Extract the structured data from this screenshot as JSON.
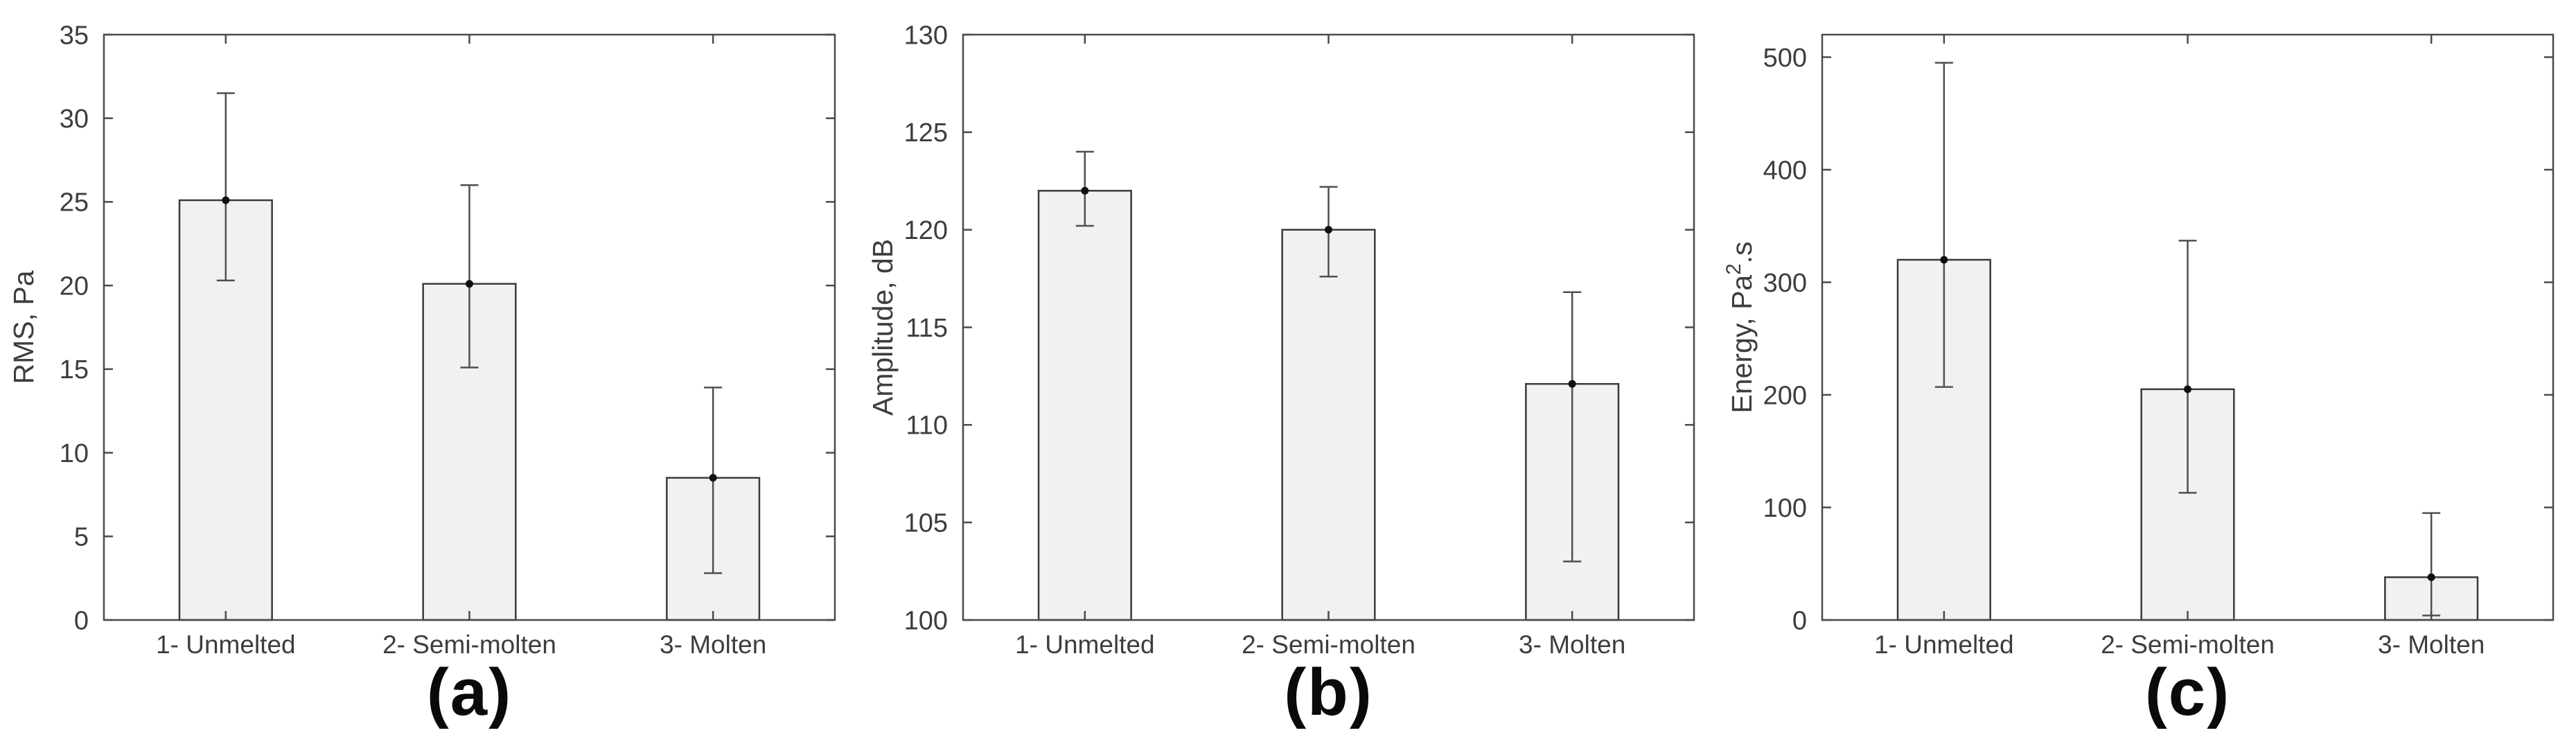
{
  "figure": {
    "background": "#ffffff"
  },
  "style": {
    "axis_color": "#4a4a4a",
    "text_color": "#3d3d3d",
    "bar_fill": "#f1f1f1",
    "bar_edge": "#3a3a3a",
    "error_color": "#4f4f4f",
    "marker_color": "#111111"
  },
  "chart_data": [
    {
      "type": "bar",
      "panel_label": "(a)",
      "ylabel": "RMS, Pa",
      "ylabel_parts": [
        {
          "t": "RMS, Pa"
        }
      ],
      "categories": [
        "1- Unmelted",
        "2- Semi-molten",
        "3- Molten"
      ],
      "values": [
        25.1,
        20.1,
        8.5
      ],
      "error_low": [
        20.3,
        15.1,
        2.8
      ],
      "error_high": [
        31.5,
        26.0,
        13.9
      ],
      "ylim": [
        0,
        35
      ],
      "yticks": [
        0,
        5,
        10,
        15,
        20,
        25,
        30,
        35
      ],
      "xlabel": "",
      "grid": false,
      "legend": null
    },
    {
      "type": "bar",
      "panel_label": "(b)",
      "ylabel": "Amplitude, dB",
      "ylabel_parts": [
        {
          "t": "Amplitude, dB"
        }
      ],
      "categories": [
        "1- Unmelted",
        "2- Semi-molten",
        "3- Molten"
      ],
      "values": [
        122.0,
        120.0,
        112.1
      ],
      "error_low": [
        120.2,
        117.6,
        103.0
      ],
      "error_high": [
        124.0,
        122.2,
        116.8
      ],
      "ylim": [
        100,
        130
      ],
      "yticks": [
        100,
        105,
        110,
        115,
        120,
        125,
        130
      ],
      "xlabel": "",
      "grid": false,
      "legend": null
    },
    {
      "type": "bar",
      "panel_label": "(c)",
      "ylabel": "Energy, Pa2.s",
      "ylabel_parts": [
        {
          "t": "Energy, Pa"
        },
        {
          "t": "2",
          "sup": true
        },
        {
          "t": ".s"
        }
      ],
      "categories": [
        "1- Unmelted",
        "2- Semi-molten",
        "3- Molten"
      ],
      "values": [
        320,
        205,
        38
      ],
      "error_low": [
        207,
        113,
        4
      ],
      "error_high": [
        495,
        337,
        95
      ],
      "ylim": [
        0,
        520
      ],
      "yticks": [
        0,
        100,
        200,
        300,
        400,
        500
      ],
      "xlabel": "",
      "grid": false,
      "legend": null
    }
  ]
}
